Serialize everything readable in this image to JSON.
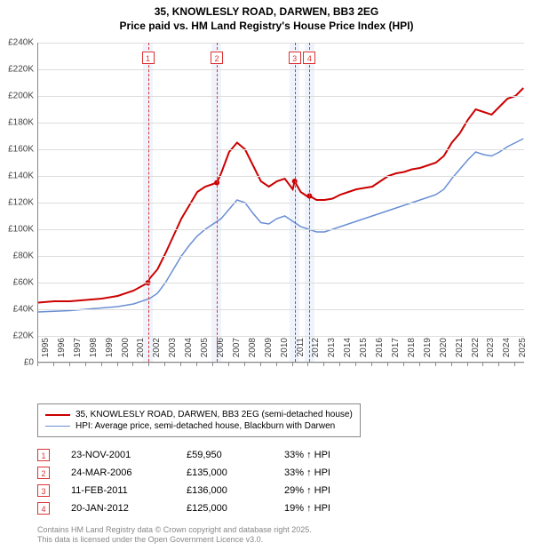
{
  "title_line1": "35, KNOWLESLY ROAD, DARWEN, BB3 2EG",
  "title_line2": "Price paid vs. HM Land Registry's House Price Index (HPI)",
  "title_fontsize": 12,
  "chart": {
    "type": "line",
    "x_range": [
      1995,
      2025.6
    ],
    "y_range": [
      0,
      240000
    ],
    "y_ticks": [
      0,
      20000,
      40000,
      60000,
      80000,
      100000,
      120000,
      140000,
      160000,
      180000,
      200000,
      220000,
      240000
    ],
    "y_tick_labels": [
      "£0",
      "£20K",
      "£40K",
      "£60K",
      "£80K",
      "£100K",
      "£120K",
      "£140K",
      "£160K",
      "£180K",
      "£200K",
      "£220K",
      "£240K"
    ],
    "x_ticks": [
      1995,
      1996,
      1997,
      1998,
      1999,
      2000,
      2001,
      2002,
      2003,
      2004,
      2005,
      2006,
      2007,
      2008,
      2009,
      2010,
      2011,
      2012,
      2013,
      2014,
      2015,
      2016,
      2017,
      2018,
      2019,
      2020,
      2021,
      2022,
      2023,
      2024,
      2025
    ],
    "grid_color": "#dddddd",
    "axis_color": "#888888",
    "background_color": "#ffffff",
    "label_fontsize": 10,
    "shaded_bands": [
      {
        "from": 2001.6,
        "to": 2002.2,
        "color": "rgba(100,150,230,0.10)"
      },
      {
        "from": 2005.9,
        "to": 2006.5,
        "color": "rgba(100,150,230,0.10)"
      },
      {
        "from": 2010.8,
        "to": 2011.4,
        "color": "rgba(100,150,230,0.10)"
      },
      {
        "from": 2011.75,
        "to": 2012.35,
        "color": "rgba(100,150,230,0.10)"
      }
    ],
    "vlines": [
      {
        "x": 2001.9,
        "color": "#d33",
        "dash": true
      },
      {
        "x": 2006.23,
        "color": "#d33",
        "dash": true
      },
      {
        "x": 2011.12,
        "color": "#d33",
        "dash": true
      },
      {
        "x": 2012.05,
        "color": "#d33",
        "dash": true
      }
    ],
    "marker_labels": [
      {
        "x": 2001.9,
        "label": "1"
      },
      {
        "x": 2006.23,
        "label": "2"
      },
      {
        "x": 2011.12,
        "label": "3"
      },
      {
        "x": 2012.05,
        "label": "4"
      }
    ],
    "series": [
      {
        "name": "35, KNOWLESLY ROAD, DARWEN, BB3 2EG (semi-detached house)",
        "color": "#cc0000",
        "line_width": 2,
        "points": [
          [
            1995,
            45000
          ],
          [
            1996,
            46000
          ],
          [
            1997,
            46000
          ],
          [
            1998,
            47000
          ],
          [
            1999,
            48000
          ],
          [
            2000,
            50000
          ],
          [
            2001,
            54000
          ],
          [
            2001.9,
            59950
          ],
          [
            2002,
            63000
          ],
          [
            2002.5,
            70000
          ],
          [
            2003,
            82000
          ],
          [
            2003.5,
            95000
          ],
          [
            2004,
            108000
          ],
          [
            2004.5,
            118000
          ],
          [
            2005,
            128000
          ],
          [
            2005.5,
            132000
          ],
          [
            2006,
            134000
          ],
          [
            2006.23,
            135000
          ],
          [
            2006.5,
            142000
          ],
          [
            2007,
            158000
          ],
          [
            2007.5,
            165000
          ],
          [
            2008,
            160000
          ],
          [
            2008.5,
            148000
          ],
          [
            2009,
            136000
          ],
          [
            2009.5,
            132000
          ],
          [
            2010,
            136000
          ],
          [
            2010.5,
            138000
          ],
          [
            2011,
            130000
          ],
          [
            2011.12,
            136000
          ],
          [
            2011.5,
            128000
          ],
          [
            2012,
            124000
          ],
          [
            2012.05,
            125000
          ],
          [
            2012.5,
            122000
          ],
          [
            2013,
            122000
          ],
          [
            2013.5,
            123000
          ],
          [
            2014,
            126000
          ],
          [
            2014.5,
            128000
          ],
          [
            2015,
            130000
          ],
          [
            2015.5,
            131000
          ],
          [
            2016,
            132000
          ],
          [
            2016.5,
            136000
          ],
          [
            2017,
            140000
          ],
          [
            2017.5,
            142000
          ],
          [
            2018,
            143000
          ],
          [
            2018.5,
            145000
          ],
          [
            2019,
            146000
          ],
          [
            2019.5,
            148000
          ],
          [
            2020,
            150000
          ],
          [
            2020.5,
            155000
          ],
          [
            2021,
            165000
          ],
          [
            2021.5,
            172000
          ],
          [
            2022,
            182000
          ],
          [
            2022.5,
            190000
          ],
          [
            2023,
            188000
          ],
          [
            2023.5,
            186000
          ],
          [
            2024,
            192000
          ],
          [
            2024.5,
            198000
          ],
          [
            2025,
            200000
          ],
          [
            2025.5,
            206000
          ]
        ],
        "sale_dots": [
          {
            "x": 2001.9,
            "y": 59950
          },
          {
            "x": 2006.23,
            "y": 135000
          },
          {
            "x": 2011.12,
            "y": 136000
          },
          {
            "x": 2012.05,
            "y": 125000
          }
        ]
      },
      {
        "name": "HPI: Average price, semi-detached house, Blackburn with Darwen",
        "color": "#6a8fd4",
        "line_width": 1.5,
        "points": [
          [
            1995,
            38000
          ],
          [
            1996,
            38500
          ],
          [
            1997,
            39000
          ],
          [
            1998,
            40000
          ],
          [
            1999,
            41000
          ],
          [
            2000,
            42000
          ],
          [
            2001,
            44000
          ],
          [
            2002,
            48000
          ],
          [
            2002.5,
            52000
          ],
          [
            2003,
            60000
          ],
          [
            2003.5,
            70000
          ],
          [
            2004,
            80000
          ],
          [
            2004.5,
            88000
          ],
          [
            2005,
            95000
          ],
          [
            2005.5,
            100000
          ],
          [
            2006,
            104000
          ],
          [
            2006.5,
            108000
          ],
          [
            2007,
            115000
          ],
          [
            2007.5,
            122000
          ],
          [
            2008,
            120000
          ],
          [
            2008.5,
            112000
          ],
          [
            2009,
            105000
          ],
          [
            2009.5,
            104000
          ],
          [
            2010,
            108000
          ],
          [
            2010.5,
            110000
          ],
          [
            2011,
            106000
          ],
          [
            2011.5,
            102000
          ],
          [
            2012,
            100000
          ],
          [
            2012.5,
            98000
          ],
          [
            2013,
            98000
          ],
          [
            2013.5,
            100000
          ],
          [
            2014,
            102000
          ],
          [
            2014.5,
            104000
          ],
          [
            2015,
            106000
          ],
          [
            2015.5,
            108000
          ],
          [
            2016,
            110000
          ],
          [
            2016.5,
            112000
          ],
          [
            2017,
            114000
          ],
          [
            2017.5,
            116000
          ],
          [
            2018,
            118000
          ],
          [
            2018.5,
            120000
          ],
          [
            2019,
            122000
          ],
          [
            2019.5,
            124000
          ],
          [
            2020,
            126000
          ],
          [
            2020.5,
            130000
          ],
          [
            2021,
            138000
          ],
          [
            2021.5,
            145000
          ],
          [
            2022,
            152000
          ],
          [
            2022.5,
            158000
          ],
          [
            2023,
            156000
          ],
          [
            2023.5,
            155000
          ],
          [
            2024,
            158000
          ],
          [
            2024.5,
            162000
          ],
          [
            2025,
            165000
          ],
          [
            2025.5,
            168000
          ]
        ]
      }
    ]
  },
  "legend": {
    "items": [
      {
        "color": "#cc0000",
        "width": 2,
        "label": "35, KNOWLESLY ROAD, DARWEN, BB3 2EG (semi-detached house)"
      },
      {
        "color": "#6a8fd4",
        "width": 1.5,
        "label": "HPI: Average price, semi-detached house, Blackburn with Darwen"
      }
    ],
    "fontsize": 10,
    "border_color": "#888888"
  },
  "transactions": [
    {
      "n": "1",
      "date": "23-NOV-2001",
      "price": "£59,950",
      "hpi": "33% ↑ HPI"
    },
    {
      "n": "2",
      "date": "24-MAR-2006",
      "price": "£135,000",
      "hpi": "33% ↑ HPI"
    },
    {
      "n": "3",
      "date": "11-FEB-2011",
      "price": "£136,000",
      "hpi": "29% ↑ HPI"
    },
    {
      "n": "4",
      "date": "20-JAN-2012",
      "price": "£125,000",
      "hpi": "19% ↑ HPI"
    }
  ],
  "footer_line1": "Contains HM Land Registry data © Crown copyright and database right 2025.",
  "footer_line2": "This data is licensed under the Open Government Licence v3.0.",
  "colors": {
    "marker_border": "#d33333",
    "footer_text": "#888888"
  }
}
